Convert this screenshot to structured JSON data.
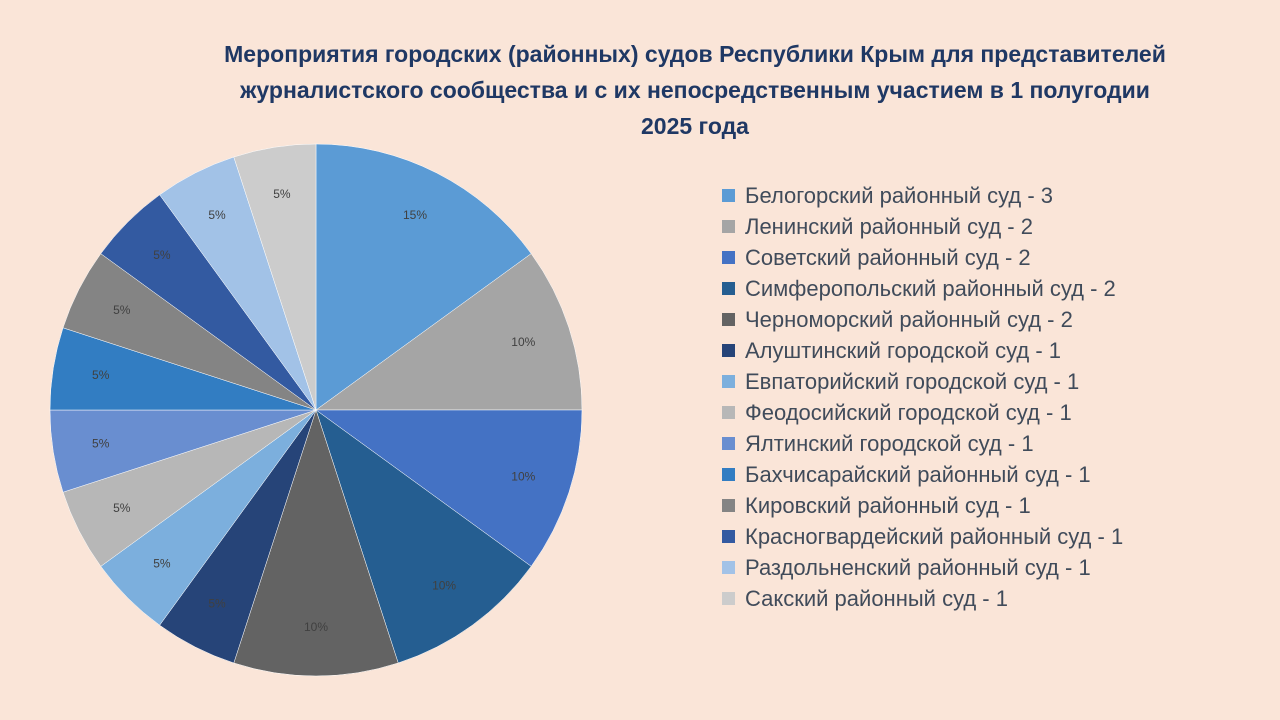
{
  "chart_data": {
    "type": "pie",
    "title_lines": [
      "Мероприятия городских (районных) судов Республики Крым для представителей",
      "журналистского сообщества и с их непосредственным участием в 1 полугодии",
      "2025 года"
    ],
    "legend_position": "right",
    "slices": [
      {
        "label": "Белогорский районный суд - 3",
        "value": 3,
        "percent_label": "15%",
        "color": "#5b9bd5"
      },
      {
        "label": "Ленинский районный суд - 2",
        "value": 2,
        "percent_label": "10%",
        "color": "#a5a5a5"
      },
      {
        "label": "Советский районный суд - 2",
        "value": 2,
        "percent_label": "10%",
        "color": "#4472c4"
      },
      {
        "label": "Симферопольский районный суд - 2",
        "value": 2,
        "percent_label": "10%",
        "color": "#255e91"
      },
      {
        "label": "Черноморский районный суд - 2",
        "value": 2,
        "percent_label": "10%",
        "color": "#636363"
      },
      {
        "label": "Алуштинский городской суд - 1",
        "value": 1,
        "percent_label": "5%",
        "color": "#264478"
      },
      {
        "label": "Евпаторийский городской суд - 1",
        "value": 1,
        "percent_label": "5%",
        "color": "#7cafdd"
      },
      {
        "label": "Феодосийский городской суд - 1",
        "value": 1,
        "percent_label": "5%",
        "color": "#b7b7b7"
      },
      {
        "label": "Ялтинский городской суд - 1",
        "value": 1,
        "percent_label": "5%",
        "color": "#698ed0"
      },
      {
        "label": "Бахчисарайский районный суд - 1",
        "value": 1,
        "percent_label": "5%",
        "color": "#327dc2"
      },
      {
        "label": "Кировский районный суд - 1",
        "value": 1,
        "percent_label": "5%",
        "color": "#848484"
      },
      {
        "label": "Красногвардейский районный суд - 1",
        "value": 1,
        "percent_label": "5%",
        "color": "#335aa1"
      },
      {
        "label": "Раздольненский районный суд - 1",
        "value": 1,
        "percent_label": "5%",
        "color": "#a2c2e7"
      },
      {
        "label": "Сакский районный суд - 1",
        "value": 1,
        "percent_label": "5%",
        "color": "#cccccc"
      }
    ]
  }
}
